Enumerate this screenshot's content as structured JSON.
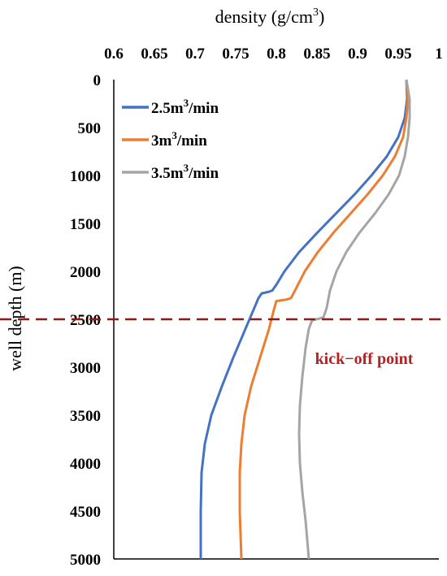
{
  "chart_data": {
    "type": "line",
    "title": "",
    "xlabel_text": "density (g/cm",
    "xlabel_sup": "3",
    "xlabel_close": ")",
    "ylabel": "well depth (m)",
    "x_axis_position": "top",
    "y_inverted": true,
    "xlim": [
      0.6,
      1.0
    ],
    "ylim": [
      0,
      5000
    ],
    "x_ticks": [
      "0.6",
      "0.65",
      "0.7",
      "0.75",
      "0.8",
      "0.85",
      "0.9",
      "0.95",
      "1"
    ],
    "y_ticks": [
      "0",
      "500",
      "1000",
      "1500",
      "2000",
      "2500",
      "3000",
      "3500",
      "4000",
      "4500",
      "5000"
    ],
    "grid": false,
    "legend_position": "top-left",
    "series": [
      {
        "name_base": "2.5m",
        "name_sup": "3",
        "name_tail": "/min",
        "color": "#4472C4",
        "points": [
          [
            0.96,
            0
          ],
          [
            0.961,
            200
          ],
          [
            0.958,
            400
          ],
          [
            0.95,
            600
          ],
          [
            0.936,
            800
          ],
          [
            0.917,
            1000
          ],
          [
            0.896,
            1200
          ],
          [
            0.873,
            1400
          ],
          [
            0.85,
            1600
          ],
          [
            0.828,
            1800
          ],
          [
            0.81,
            2000
          ],
          [
            0.8,
            2140
          ],
          [
            0.795,
            2200
          ],
          [
            0.79,
            2215
          ],
          [
            0.782,
            2230
          ],
          [
            0.778,
            2280
          ],
          [
            0.772,
            2400
          ],
          [
            0.762,
            2600
          ],
          [
            0.747,
            2900
          ],
          [
            0.733,
            3200
          ],
          [
            0.72,
            3500
          ],
          [
            0.712,
            3800
          ],
          [
            0.708,
            4100
          ],
          [
            0.707,
            4500
          ],
          [
            0.707,
            5000
          ]
        ]
      },
      {
        "name_base": "3m",
        "name_sup": "3",
        "name_tail": "/min",
        "color": "#ED7D31",
        "points": [
          [
            0.96,
            0
          ],
          [
            0.962,
            200
          ],
          [
            0.96,
            400
          ],
          [
            0.956,
            600
          ],
          [
            0.946,
            800
          ],
          [
            0.931,
            1000
          ],
          [
            0.912,
            1200
          ],
          [
            0.891,
            1400
          ],
          [
            0.87,
            1600
          ],
          [
            0.851,
            1800
          ],
          [
            0.835,
            2000
          ],
          [
            0.823,
            2200
          ],
          [
            0.818,
            2280
          ],
          [
            0.812,
            2295
          ],
          [
            0.8,
            2310
          ],
          [
            0.797,
            2400
          ],
          [
            0.791,
            2600
          ],
          [
            0.78,
            2900
          ],
          [
            0.769,
            3200
          ],
          [
            0.761,
            3500
          ],
          [
            0.757,
            3800
          ],
          [
            0.755,
            4100
          ],
          [
            0.755,
            4500
          ],
          [
            0.757,
            5000
          ]
        ]
      },
      {
        "name_base": "3.5m",
        "name_sup": "3",
        "name_tail": "/min",
        "color": "#A5A5A5",
        "points": [
          [
            0.96,
            0
          ],
          [
            0.964,
            200
          ],
          [
            0.964,
            400
          ],
          [
            0.962,
            600
          ],
          [
            0.958,
            800
          ],
          [
            0.951,
            1000
          ],
          [
            0.938,
            1200
          ],
          [
            0.921,
            1400
          ],
          [
            0.902,
            1600
          ],
          [
            0.886,
            1800
          ],
          [
            0.874,
            2000
          ],
          [
            0.866,
            2200
          ],
          [
            0.862,
            2380
          ],
          [
            0.858,
            2480
          ],
          [
            0.852,
            2495
          ],
          [
            0.844,
            2510
          ],
          [
            0.84,
            2600
          ],
          [
            0.836,
            2800
          ],
          [
            0.832,
            3100
          ],
          [
            0.829,
            3400
          ],
          [
            0.828,
            3700
          ],
          [
            0.829,
            4000
          ],
          [
            0.832,
            4300
          ],
          [
            0.836,
            4600
          ],
          [
            0.84,
            5000
          ]
        ]
      }
    ],
    "reference_line": {
      "y": 2500,
      "color": "#8B1A1A",
      "style": "dashed",
      "label": "kick−off point"
    }
  }
}
